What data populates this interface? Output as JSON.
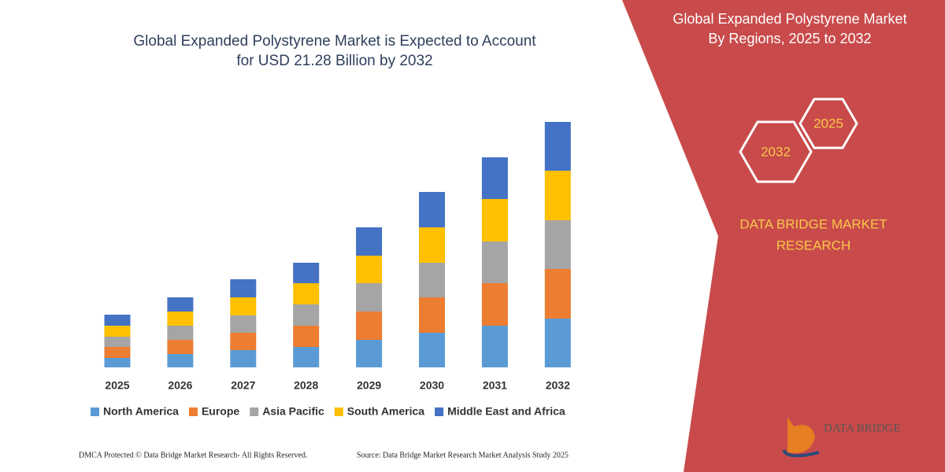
{
  "chart_data": {
    "type": "stacked-bar",
    "title": [
      "Global Expanded Polystyrene Market is Expected to Account",
      "for USD 21.28 Billion by 2032"
    ],
    "categories": [
      "2025",
      "2026",
      "2027",
      "2028",
      "2029",
      "2030",
      "2031",
      "2032"
    ],
    "series": [
      {
        "name": "North America",
        "color": "#5b9bd5",
        "values": [
          12,
          17,
          22,
          26,
          35,
          44,
          53,
          62
        ]
      },
      {
        "name": "Europe",
        "color": "#ed7d31",
        "values": [
          14,
          18,
          22,
          27,
          36,
          45,
          54,
          63
        ]
      },
      {
        "name": "Asia Pacific",
        "color": "#a5a5a5",
        "values": [
          13,
          18,
          22,
          27,
          36,
          44,
          53,
          62
        ]
      },
      {
        "name": "South America",
        "color": "#ffc000",
        "values": [
          14,
          18,
          23,
          27,
          35,
          45,
          54,
          63
        ]
      },
      {
        "name": "Middle East and Africa",
        "color": "#4472c4",
        "values": [
          14,
          18,
          23,
          26,
          36,
          45,
          53,
          62
        ]
      }
    ]
  },
  "panel": {
    "title": [
      "Global Expanded Polystyrene Market",
      "By Regions, 2025 to 2032"
    ],
    "hexagons": [
      "2025",
      "2032"
    ],
    "brand": [
      "DATA BRIDGE MARKET",
      "RESEARCH"
    ],
    "logo": "DATA BRIDGE"
  },
  "footer": {
    "left": "DMCA Protected © Data Bridge Market Research- All Rights Reserved.",
    "right": "Source: Data Bridge Market Research Market Analysis Study 2025"
  }
}
